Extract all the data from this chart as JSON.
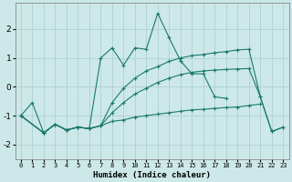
{
  "xlabel": "Humidex (Indice chaleur)",
  "background_color": "#cde8e8",
  "grid_color": "#aacccc",
  "line_color": "#1a7a6e",
  "xlim": [
    -0.5,
    23.5
  ],
  "ylim": [
    -2.5,
    2.9
  ],
  "xticks": [
    0,
    1,
    2,
    3,
    4,
    5,
    6,
    7,
    8,
    9,
    10,
    11,
    12,
    13,
    14,
    15,
    16,
    17,
    18,
    19,
    20,
    21,
    22,
    23
  ],
  "yticks": [
    -2,
    -1,
    0,
    1,
    2
  ],
  "line1_x": [
    0,
    1,
    2,
    3,
    4,
    5,
    6,
    7,
    8,
    9,
    10,
    11,
    12,
    13,
    14,
    15,
    16,
    17,
    18,
    19,
    20,
    21
  ],
  "line1_y": [
    -1.0,
    -0.55,
    -1.6,
    -1.3,
    -1.5,
    -1.4,
    -1.45,
    1.0,
    1.35,
    0.75,
    1.35,
    1.3,
    2.55,
    1.7,
    0.9,
    0.45,
    0.45,
    -0.35,
    -0.4,
    null,
    null,
    null
  ],
  "line2_x": [
    0,
    2,
    3,
    4,
    5,
    6,
    7,
    8,
    9,
    10,
    11,
    12,
    13,
    14,
    15,
    16,
    17,
    18,
    19,
    20,
    21,
    22,
    23
  ],
  "line2_y": [
    -1.0,
    -1.6,
    -1.3,
    -1.5,
    -1.4,
    -1.45,
    -1.35,
    -1.2,
    -1.15,
    -1.05,
    -1.0,
    -0.95,
    -0.9,
    -0.85,
    -0.8,
    -0.78,
    -0.75,
    -0.72,
    -0.7,
    -0.65,
    -0.6,
    null,
    null
  ],
  "line3_x": [
    0,
    2,
    3,
    4,
    5,
    6,
    7,
    8,
    9,
    10,
    11,
    12,
    13,
    14,
    15,
    16,
    17,
    18,
    19,
    20,
    21,
    22,
    23
  ],
  "line3_y": [
    -1.0,
    -1.6,
    -1.3,
    -1.5,
    -1.4,
    -1.45,
    -1.35,
    -0.9,
    -0.55,
    -0.25,
    -0.05,
    0.15,
    0.3,
    0.42,
    0.5,
    0.55,
    0.58,
    0.6,
    0.62,
    0.63,
    -0.35,
    -1.55,
    -1.4
  ],
  "line4_x": [
    0,
    2,
    3,
    4,
    5,
    6,
    7,
    8,
    9,
    10,
    11,
    12,
    13,
    14,
    15,
    16,
    17,
    18,
    19,
    20,
    21,
    22,
    23
  ],
  "line4_y": [
    -1.0,
    -1.6,
    -1.3,
    -1.5,
    -1.4,
    -1.45,
    -1.35,
    -0.55,
    -0.05,
    0.3,
    0.55,
    0.7,
    0.88,
    1.0,
    1.08,
    1.12,
    1.18,
    1.22,
    1.28,
    1.3,
    -0.35,
    -1.55,
    -1.4
  ]
}
